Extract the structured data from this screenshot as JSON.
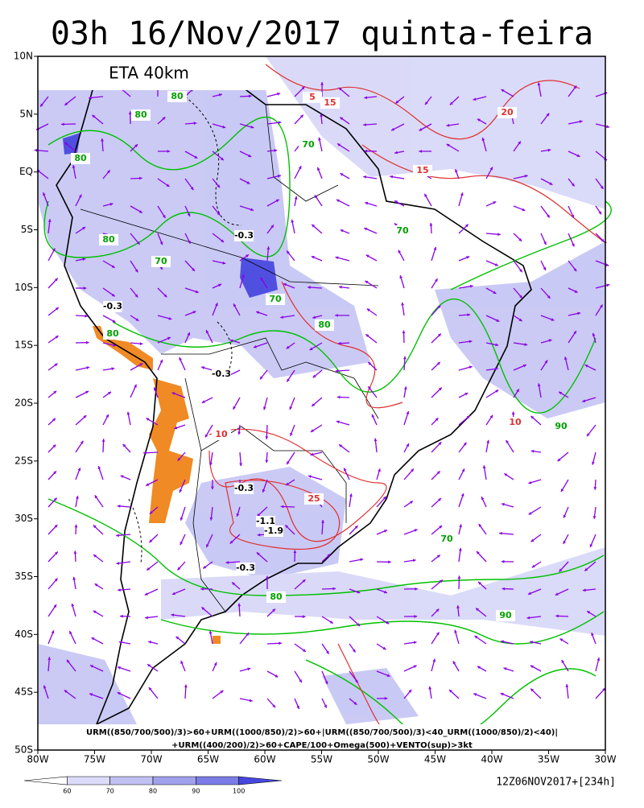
{
  "header": {
    "title": "03h 16/Nov/2017 quinta-feira",
    "model": "ETA 40km"
  },
  "map": {
    "lon_ticks": [
      {
        "value": -80,
        "label": "80W"
      },
      {
        "value": -75,
        "label": "75W"
      },
      {
        "value": -70,
        "label": "70W"
      },
      {
        "value": -65,
        "label": "65W"
      },
      {
        "value": -60,
        "label": "60W"
      },
      {
        "value": -55,
        "label": "55W"
      },
      {
        "value": -50,
        "label": "50W"
      },
      {
        "value": -45,
        "label": "45W"
      },
      {
        "value": -40,
        "label": "40W"
      },
      {
        "value": -35,
        "label": "35W"
      },
      {
        "value": -30,
        "label": "30W"
      }
    ],
    "lat_ticks": [
      {
        "value": 10,
        "label": "10N"
      },
      {
        "value": 5,
        "label": "5N"
      },
      {
        "value": 0,
        "label": "EQ"
      },
      {
        "value": -5,
        "label": "5S"
      },
      {
        "value": -10,
        "label": "10S"
      },
      {
        "value": -15,
        "label": "15S"
      },
      {
        "value": -20,
        "label": "20S"
      },
      {
        "value": -25,
        "label": "25S"
      },
      {
        "value": -30,
        "label": "30S"
      },
      {
        "value": -35,
        "label": "35S"
      },
      {
        "value": -40,
        "label": "40S"
      },
      {
        "value": -45,
        "label": "45S"
      },
      {
        "value": -50,
        "label": "50S"
      }
    ],
    "contour_labels": [
      "80",
      "80",
      "80",
      "80",
      "70",
      "70",
      "70",
      "80",
      "90",
      "-0.3",
      "-0.3",
      "-0.3",
      "-0.3",
      "-0.3",
      "-1.1",
      "-1.9",
      "5",
      "10",
      "15",
      "20",
      "25",
      "10",
      "15",
      "70",
      "80",
      "90",
      "70",
      "80"
    ]
  },
  "formula": [
    "URM((850/700/500)/3)>60+URM((1000/850)/2)>60+|URM((850/700/500)/3)<40_URM((1000/850)/2)<40)|",
    "+URM((400/200)/2)>60+CAPE/100+Omega(500)+VENTO(sup)>3kt"
  ],
  "colorbar": {
    "ticks": [
      60,
      70,
      80,
      90,
      100
    ],
    "colors": [
      "#ffffff",
      "#dcdcfa",
      "#c0c0f4",
      "#a0a0ec",
      "#7c7ce6",
      "#4646e0"
    ]
  },
  "footer": {
    "run": "12Z06NOV2017+[234h]"
  }
}
